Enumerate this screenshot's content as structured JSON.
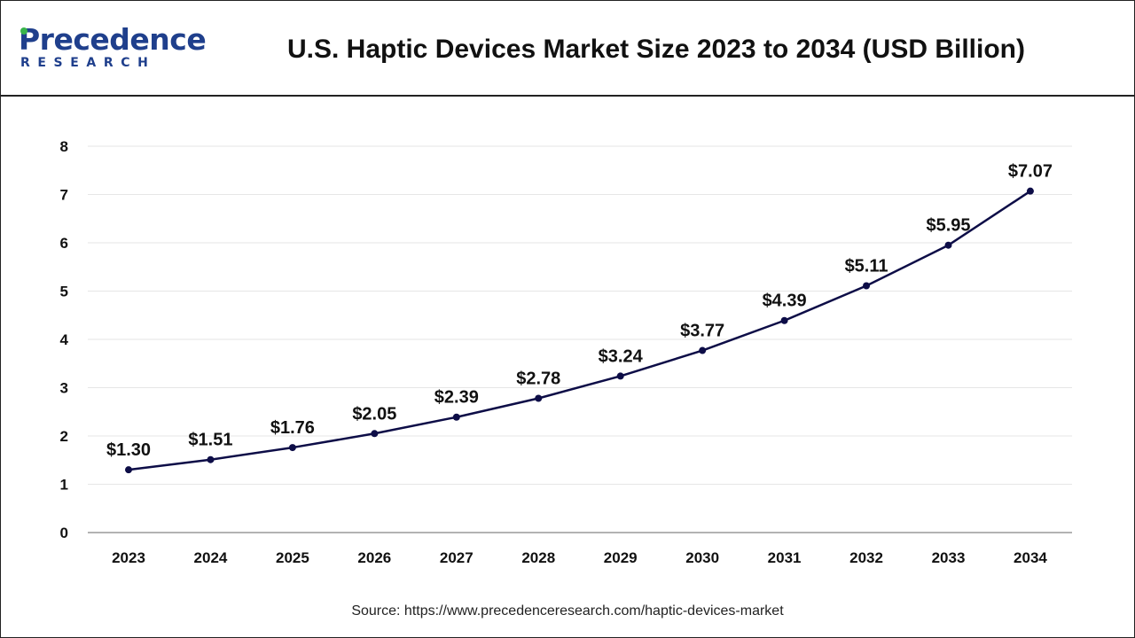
{
  "brand": {
    "name_top": "Precedence",
    "name_bottom": "RESEARCH",
    "color": "#1f3f8c",
    "accent": "#39b54a"
  },
  "header": {
    "title": "U.S. Haptic Devices Market Size 2023 to 2034 (USD Billion)"
  },
  "footer": {
    "source": "Source: https://www.precedenceresearch.com/haptic-devices-market"
  },
  "chart_data": {
    "type": "line",
    "title": "U.S. Haptic Devices Market Size 2023 to 2034 (USD Billion)",
    "xlabel": "",
    "ylabel": "",
    "categories": [
      "2023",
      "2024",
      "2025",
      "2026",
      "2027",
      "2028",
      "2029",
      "2030",
      "2031",
      "2032",
      "2033",
      "2034"
    ],
    "series": [
      {
        "values": [
          1.3,
          1.51,
          1.76,
          2.05,
          2.39,
          2.78,
          3.24,
          3.77,
          4.39,
          5.11,
          5.95,
          7.07
        ],
        "labels": [
          "$1.30",
          "$1.51",
          "$1.76",
          "$2.05",
          "$2.39",
          "$2.78",
          "$3.24",
          "$3.77",
          "$4.39",
          "$5.11",
          "$5.95",
          "$7.07"
        ],
        "color": "#0d0d47"
      }
    ],
    "ylim": [
      0,
      8
    ],
    "yticks": [
      0,
      1,
      2,
      3,
      4,
      5,
      6,
      7,
      8
    ],
    "grid": true,
    "legend": "none"
  }
}
